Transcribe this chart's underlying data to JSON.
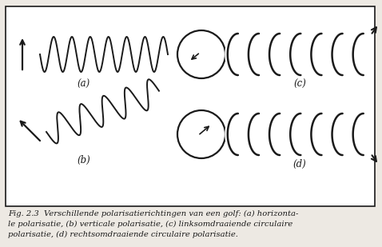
{
  "bg_color": "#ede9e3",
  "line_color": "#1a1a1a",
  "caption_fontsize": 7.2,
  "label_fontsize": 8.5,
  "labels": [
    "(a)",
    "(b)",
    "(c)",
    "(d)"
  ],
  "wave_cycles_a": 7,
  "wave_cycles_b": 5,
  "helix_loops": 7,
  "caption_lines": [
    "Fig. 2.3  Verschillende polarisatierichtingen van een golf: (a) horizonta-",
    "le polarisatie, (b) verticale polarisatie, (c) linksomdraaiende circulaire",
    "polarisatie, (d) rechtsomdraaiende circulaire polarisatie."
  ]
}
